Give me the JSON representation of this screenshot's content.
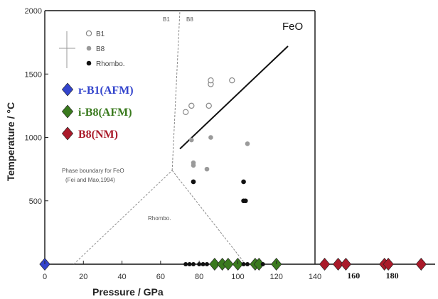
{
  "chart_data": {
    "type": "scatter",
    "title": "FeO",
    "xlabel": "Pressure / GPa",
    "ylabel": "Temperature / °C",
    "xlim": [
      0,
      140
    ],
    "ylim": [
      0,
      2000
    ],
    "xticks": [
      "0",
      "20",
      "40",
      "60",
      "80",
      "100",
      "120",
      "140"
    ],
    "yticks": [
      "500",
      "1000",
      "1500",
      "2000"
    ],
    "extra_xticks": [
      "160",
      "180"
    ],
    "grid": false,
    "legend_placement": "top-left",
    "phase_labels": {
      "b1": "B1",
      "b8": "B8",
      "rhombo": "Rhombo.",
      "boundary_line1": "Phase boundary for FeO",
      "boundary_line2": "(Fei and Mao,1994)"
    },
    "legend_experimental": [
      {
        "label": "B1",
        "marker": "open-circle"
      },
      {
        "label": "B8",
        "marker": "gray-circle"
      },
      {
        "label": "Rhombo.",
        "marker": "black-circle"
      }
    ],
    "series": [
      {
        "name": "B1",
        "marker": "open-circle",
        "color": "#888888",
        "points": [
          [
            73,
            1200
          ],
          [
            76,
            1250
          ],
          [
            85,
            1250
          ],
          [
            86,
            1420
          ],
          [
            86,
            1450
          ],
          [
            97,
            1450
          ]
        ]
      },
      {
        "name": "B8",
        "marker": "gray-circle",
        "color": "#9a9a9a",
        "points": [
          [
            76,
            980
          ],
          [
            77,
            800
          ],
          [
            77,
            780
          ],
          [
            86,
            1000
          ],
          [
            84,
            750
          ],
          [
            105,
            950
          ],
          [
            77,
            650
          ]
        ]
      },
      {
        "name": "Rhombo.",
        "marker": "black-circle",
        "color": "#111111",
        "points": [
          [
            77,
            650
          ],
          [
            103,
            650
          ],
          [
            103,
            500
          ],
          [
            104,
            500
          ]
        ]
      },
      {
        "name": "r-B1(AFM)",
        "marker": "diamond",
        "color": "#3344cc",
        "points": [
          [
            0,
            0
          ]
        ]
      },
      {
        "name": "i-B8(AFM)",
        "marker": "diamond",
        "color": "#3a7a1e",
        "points": [
          [
            88,
            0
          ],
          [
            92,
            0
          ],
          [
            95,
            0
          ],
          [
            100,
            0
          ],
          [
            109,
            0
          ],
          [
            111,
            0
          ],
          [
            120,
            0
          ]
        ]
      },
      {
        "name": "B8(NM)",
        "marker": "diamond",
        "color": "#aa1a2a",
        "points": [
          [
            145,
            0
          ],
          [
            152,
            0
          ],
          [
            156,
            0
          ],
          [
            176,
            0
          ],
          [
            178,
            0
          ],
          [
            195,
            0
          ]
        ]
      },
      {
        "name": "",
        "marker": "small-black-dot",
        "color": "#111111",
        "points": [
          [
            73,
            0
          ],
          [
            75,
            0
          ],
          [
            77,
            0
          ],
          [
            80,
            0
          ],
          [
            82,
            0
          ],
          [
            84,
            0
          ],
          [
            103,
            0
          ],
          [
            105,
            0
          ],
          [
            113,
            0
          ]
        ]
      }
    ],
    "boundaries": {
      "fit_line": [
        [
          70,
          910
        ],
        [
          126,
          1720
        ]
      ],
      "b1_b8_boundary": [
        [
          66,
          740
        ],
        [
          70,
          2000
        ]
      ],
      "rhombo_left": [
        [
          15,
          0
        ],
        [
          66,
          740
        ]
      ],
      "rhombo_right": [
        [
          66,
          740
        ],
        [
          104,
          0
        ]
      ]
    },
    "legend_computed": [
      {
        "label": "r-B1(AFM)",
        "color": "#3344cc"
      },
      {
        "label": "i-B8(AFM)",
        "color": "#3a7a1e"
      },
      {
        "label": "B8(NM)",
        "color": "#aa1a2a"
      }
    ]
  }
}
